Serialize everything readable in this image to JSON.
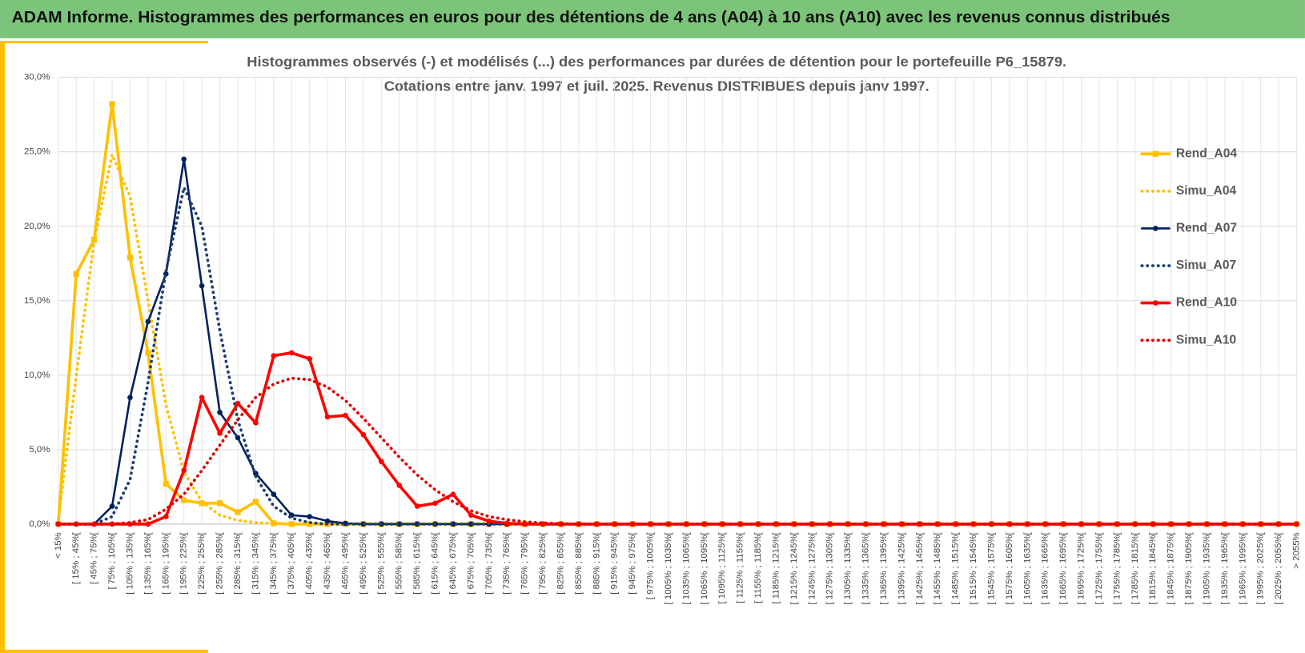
{
  "header": {
    "title": "ADAM Informe. Histogrammes des performances en euros pour des détentions de 4 ans (A04) à 10 ans (A10) avec les revenus connus distribués"
  },
  "chart_data": {
    "type": "line",
    "title": [
      "Histogrammes observés (-) et modélisés (...) des performances par durées de détention pour le portefeuille P6_15879.",
      "Cotations entre janv. 1997 et juil. 2025. Revenus DISTRIBUES depuis janv 1997."
    ],
    "categories": [
      "< 15%",
      "[ 15% ; 45%[",
      "[ 45% ; 75%[",
      "[ 75% ; 105%[",
      "[ 105% ; 135%[",
      "[ 135% ; 165%[",
      "[ 165% ; 195%[",
      "[ 195% ; 225%[",
      "[ 225% ; 255%[",
      "[ 255% ; 285%[",
      "[ 285% ; 315%[",
      "[ 315% ; 345%[",
      "[ 345% ; 375%[",
      "[ 375% ; 405%[",
      "[ 405% ; 435%[",
      "[ 435% ; 465%[",
      "[ 465% ; 495%[",
      "[ 495% ; 525%[",
      "[ 525% ; 555%[",
      "[ 555% ; 585%[",
      "[ 585% ; 615%[",
      "[ 615% ; 645%[",
      "[ 645% ; 675%[",
      "[ 675% ; 705%[",
      "[ 705% ; 735%[",
      "[ 735% ; 765%[",
      "[ 765% ; 795%[",
      "[ 795% ; 825%[",
      "[ 825% ; 855%[",
      "[ 855% ; 885%[",
      "[ 885% ; 915%[",
      "[ 915% ; 945%[",
      "[ 945% ; 975%[",
      "[ 975% ; 1005%[",
      "[ 1005% ; 1035%[",
      "[ 1035% ; 1065%[",
      "[ 1065% ; 1095%[",
      "[ 1095% ; 1125%[",
      "[ 1125% ; 1155%[",
      "[ 1155% ; 1185%[",
      "[ 1185% ; 1215%[",
      "[ 1215% ; 1245%[",
      "[ 1245% ; 1275%[",
      "[ 1275% ; 1305%[",
      "[ 1305% ; 1335%[",
      "[ 1335% ; 1365%[",
      "[ 1365% ; 1395%[",
      "[ 1395% ; 1425%[",
      "[ 1425% ; 1455%[",
      "[ 1455% ; 1485%[",
      "[ 1485% ; 1515%[",
      "[ 1515% ; 1545%[",
      "[ 1545% ; 1575%[",
      "[ 1575% ; 1605%[",
      "[ 1605% ; 1635%[",
      "[ 1635% ; 1665%[",
      "[ 1665% ; 1695%[",
      "[ 1695% ; 1725%[",
      "[ 1725% ; 1755%[",
      "[ 1755% ; 1785%[",
      "[ 1785% ; 1815%[",
      "[ 1815% ; 1845%[",
      "[ 1845% ; 1875%[",
      "[ 1875% ; 1905%[",
      "[ 1905% ; 1935%[",
      "[ 1935% ; 1965%[",
      "[ 1965% ; 1995%[",
      "[ 1995% ; 2025%[",
      "[ 2025% ; 2055%[",
      "> 2055%"
    ],
    "series": [
      {
        "name": "Rend_A04",
        "color": "#ffc000",
        "style": "solid",
        "marker": "square",
        "width": 3.5,
        "values": [
          0,
          16.8,
          19.1,
          28.2,
          17.9,
          11.5,
          2.7,
          1.6,
          1.4,
          1.4,
          0.8,
          1.5,
          0.05,
          0,
          0,
          0,
          0,
          0,
          0,
          0,
          0,
          0,
          0,
          0,
          0,
          0,
          0,
          0,
          0,
          0,
          0,
          0,
          0,
          0,
          0,
          0,
          0,
          0,
          0,
          0,
          0,
          0,
          0,
          0,
          0,
          0,
          0,
          0,
          0,
          0,
          0,
          0,
          0,
          0,
          0,
          0,
          0,
          0,
          0,
          0,
          0,
          0,
          0,
          0,
          0,
          0,
          0,
          0,
          0,
          0
        ]
      },
      {
        "name": "Simu_A04",
        "color": "#ffc000",
        "style": "dotted",
        "width": 3.5,
        "values": [
          0.3,
          10,
          19,
          24.8,
          22,
          15,
          8,
          3.5,
          1.5,
          0.6,
          0.25,
          0.1,
          0.04,
          0,
          0,
          0,
          0,
          0,
          0,
          0,
          0,
          0,
          0,
          0,
          0,
          0,
          0,
          0,
          0,
          0,
          0,
          0,
          0,
          0,
          0,
          0,
          0,
          0,
          0,
          0,
          0,
          0,
          0,
          0,
          0,
          0,
          0,
          0,
          0,
          0,
          0,
          0,
          0,
          0,
          0,
          0,
          0,
          0,
          0,
          0,
          0,
          0,
          0,
          0,
          0,
          0,
          0,
          0,
          0,
          0
        ]
      },
      {
        "name": "Rend_A07",
        "color": "#002060",
        "style": "solid",
        "marker": "circle",
        "width": 2.5,
        "values": [
          0,
          0,
          0,
          1.2,
          8.5,
          13.6,
          16.8,
          24.5,
          16.0,
          7.5,
          5.8,
          3.4,
          2.0,
          0.6,
          0.5,
          0.2,
          0.05,
          0,
          0,
          0,
          0,
          0,
          0,
          0,
          0,
          0,
          0,
          0,
          0,
          0,
          0,
          0,
          0,
          0,
          0,
          0,
          0,
          0,
          0,
          0,
          0,
          0,
          0,
          0,
          0,
          0,
          0,
          0,
          0,
          0,
          0,
          0,
          0,
          0,
          0,
          0,
          0,
          0,
          0,
          0,
          0,
          0,
          0,
          0,
          0,
          0,
          0,
          0,
          0,
          0
        ]
      },
      {
        "name": "Simu_A07",
        "color": "#1f3f6e",
        "style": "dotted",
        "width": 3.5,
        "values": [
          0,
          0,
          0,
          0.5,
          3,
          9.5,
          17,
          22.6,
          20,
          13,
          7,
          3.2,
          1.2,
          0.4,
          0.1,
          0,
          0,
          0,
          0,
          0,
          0,
          0,
          0,
          0,
          0,
          0,
          0,
          0,
          0,
          0,
          0,
          0,
          0,
          0,
          0,
          0,
          0,
          0,
          0,
          0,
          0,
          0,
          0,
          0,
          0,
          0,
          0,
          0,
          0,
          0,
          0,
          0,
          0,
          0,
          0,
          0,
          0,
          0,
          0,
          0,
          0,
          0,
          0,
          0,
          0,
          0,
          0,
          0,
          0,
          0
        ]
      },
      {
        "name": "Rend_A10",
        "color": "#ff0000",
        "style": "solid",
        "marker": "circle",
        "width": 3.5,
        "values": [
          0,
          0,
          0,
          0,
          0,
          0,
          0.5,
          3.6,
          8.5,
          6.1,
          8.1,
          6.8,
          11.3,
          11.5,
          11.1,
          7.2,
          7.3,
          6.0,
          4.2,
          2.6,
          1.2,
          1.4,
          2.0,
          0.6,
          0.2,
          0.05,
          0,
          0,
          0,
          0,
          0,
          0,
          0,
          0,
          0,
          0,
          0,
          0,
          0,
          0,
          0,
          0,
          0,
          0,
          0,
          0,
          0,
          0,
          0,
          0,
          0,
          0,
          0,
          0,
          0,
          0,
          0,
          0,
          0,
          0,
          0,
          0,
          0,
          0,
          0,
          0,
          0,
          0,
          0,
          0
        ]
      },
      {
        "name": "Simu_A10",
        "color": "#e00000",
        "style": "dotted",
        "width": 3.5,
        "values": [
          0,
          0,
          0,
          0,
          0.1,
          0.3,
          1.0,
          2.0,
          3.6,
          5.3,
          7.0,
          8.5,
          9.4,
          9.8,
          9.7,
          9.2,
          8.3,
          7.1,
          5.8,
          4.5,
          3.3,
          2.3,
          1.5,
          0.9,
          0.5,
          0.3,
          0.15,
          0.07,
          0.03,
          0,
          0,
          0,
          0,
          0,
          0,
          0,
          0,
          0,
          0,
          0,
          0,
          0,
          0,
          0,
          0,
          0,
          0,
          0,
          0,
          0,
          0,
          0,
          0,
          0,
          0,
          0,
          0,
          0,
          0,
          0,
          0,
          0,
          0,
          0,
          0,
          0,
          0,
          0,
          0,
          0
        ]
      }
    ],
    "ylim": [
      0,
      30
    ],
    "yticks": [
      {
        "value": 0,
        "label": "0,0%"
      },
      {
        "value": 5,
        "label": "5,0%"
      },
      {
        "value": 10,
        "label": "10,0%"
      },
      {
        "value": 15,
        "label": "15,0%"
      },
      {
        "value": 20,
        "label": "20,0%"
      },
      {
        "value": 25,
        "label": "25,0%"
      },
      {
        "value": 30,
        "label": "30,0%"
      }
    ],
    "grid": true,
    "legend": "right"
  }
}
